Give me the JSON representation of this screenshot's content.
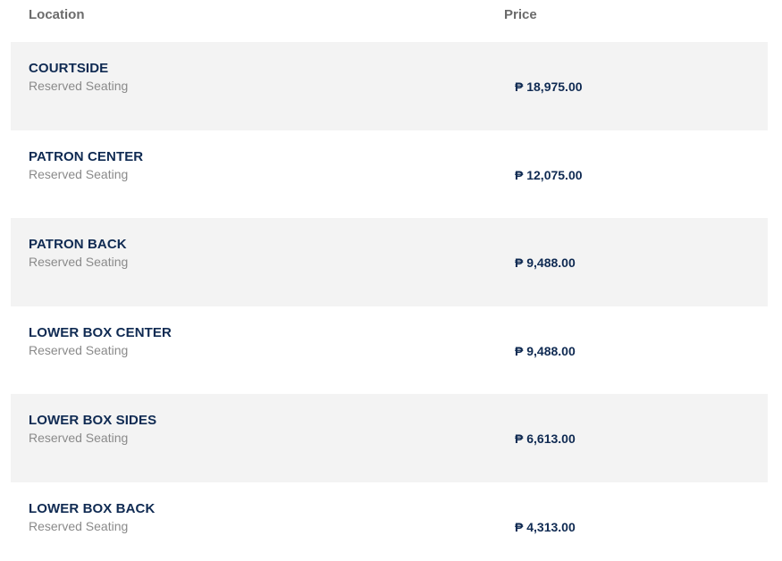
{
  "header": {
    "location_label": "Location",
    "price_label": "Price"
  },
  "rows": [
    {
      "name": "COURTSIDE",
      "seating": "Reserved Seating",
      "price": "₱ 18,975.00"
    },
    {
      "name": "PATRON CENTER",
      "seating": "Reserved Seating",
      "price": "₱ 12,075.00"
    },
    {
      "name": "PATRON BACK",
      "seating": "Reserved Seating",
      "price": "₱ 9,488.00"
    },
    {
      "name": "LOWER BOX CENTER",
      "seating": "Reserved Seating",
      "price": "₱ 9,488.00"
    },
    {
      "name": "LOWER BOX SIDES",
      "seating": "Reserved Seating",
      "price": "₱ 6,613.00"
    },
    {
      "name": "LOWER BOX BACK",
      "seating": "Reserved Seating",
      "price": "₱ 4,313.00"
    }
  ],
  "colors": {
    "row_shade": "#f3f3f3",
    "title_navy": "#0f2a52",
    "header_gray": "#6b6b6b",
    "subtext_gray": "#8a8a8a"
  }
}
